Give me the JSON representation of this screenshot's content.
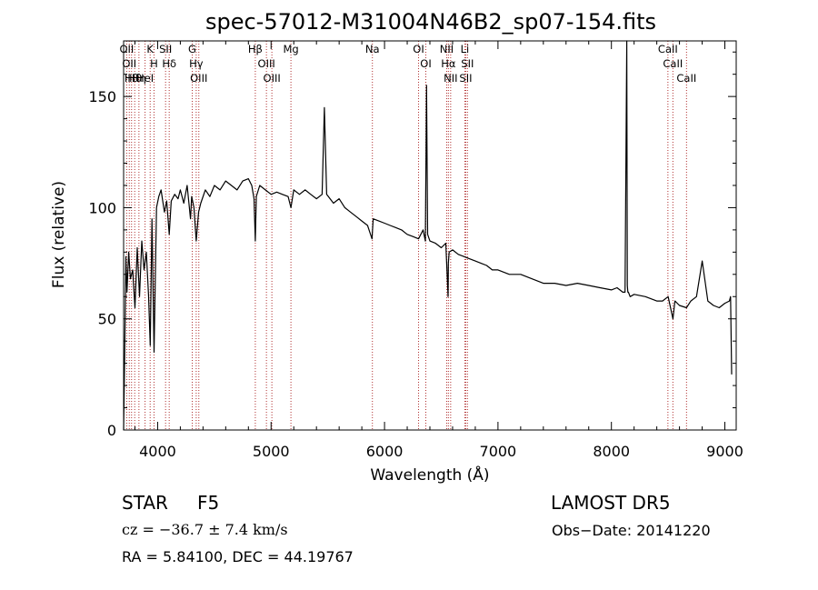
{
  "chart_data": {
    "type": "line",
    "title": "spec-57012-M31004N46B2_sp07-154.fits",
    "xlabel": "Wavelength (Å)",
    "ylabel": "Flux (relative)",
    "xlim": [
      3700,
      9100
    ],
    "ylim": [
      0,
      175
    ],
    "xticks": [
      4000,
      5000,
      6000,
      7000,
      8000,
      9000
    ],
    "yticks": [
      0,
      50,
      100,
      150
    ],
    "series": [
      {
        "x": [
          3700,
          3710,
          3720,
          3730,
          3745,
          3760,
          3780,
          3800,
          3820,
          3840,
          3860,
          3880,
          3900,
          3920,
          3935,
          3950,
          3968,
          3990,
          4010,
          4030,
          4060,
          4080,
          4102,
          4120,
          4150,
          4180,
          4200,
          4230,
          4260,
          4290,
          4300,
          4320,
          4340,
          4361,
          4380,
          4420,
          4460,
          4500,
          4550,
          4600,
          4650,
          4700,
          4750,
          4800,
          4830,
          4850,
          4861,
          4870,
          4900,
          4950,
          5000,
          5050,
          5100,
          5150,
          5175,
          5200,
          5250,
          5300,
          5350,
          5400,
          5450,
          5470,
          5490,
          5550,
          5600,
          5650,
          5700,
          5750,
          5800,
          5850,
          5890,
          5900,
          5950,
          6000,
          6050,
          6100,
          6150,
          6200,
          6250,
          6300,
          6340,
          6360,
          6370,
          6380,
          6400,
          6450,
          6500,
          6540,
          6560,
          6563,
          6570,
          6600,
          6650,
          6700,
          6750,
          6800,
          6850,
          6900,
          6950,
          7000,
          7100,
          7200,
          7300,
          7400,
          7500,
          7600,
          7700,
          7800,
          7900,
          8000,
          8050,
          8100,
          8120,
          8135,
          8140,
          8145,
          8150,
          8165,
          8200,
          8300,
          8400,
          8450,
          8500,
          8542,
          8560,
          8600,
          8662,
          8700,
          8750,
          8800,
          8850,
          8900,
          8950,
          9000,
          9040,
          9050,
          9060
        ],
        "values": [
          0,
          35,
          78,
          62,
          80,
          68,
          72,
          55,
          82,
          60,
          85,
          72,
          80,
          60,
          38,
          95,
          35,
          100,
          105,
          108,
          98,
          103,
          88,
          103,
          106,
          104,
          108,
          102,
          110,
          95,
          105,
          100,
          85,
          98,
          102,
          108,
          105,
          110,
          108,
          112,
          110,
          108,
          112,
          113,
          110,
          104,
          85,
          105,
          110,
          108,
          106,
          107,
          106,
          105,
          100,
          108,
          106,
          108,
          106,
          104,
          106,
          145,
          106,
          102,
          104,
          100,
          98,
          96,
          94,
          92,
          86,
          95,
          94,
          93,
          92,
          91,
          90,
          88,
          87,
          86,
          90,
          85,
          155,
          88,
          85,
          84,
          82,
          84,
          60,
          75,
          80,
          81,
          79,
          78,
          77,
          76,
          75,
          74,
          72,
          72,
          70,
          70,
          68,
          66,
          66,
          65,
          66,
          65,
          64,
          63,
          64,
          62,
          62,
          175,
          65,
          62,
          62,
          60,
          61,
          60,
          58,
          58,
          60,
          50,
          58,
          56,
          55,
          58,
          60,
          76,
          58,
          56,
          55,
          57,
          58,
          60,
          25
        ]
      }
    ],
    "line_markers": [
      {
        "x": 3727,
        "label": "OII"
      },
      {
        "x": 3750,
        "label": "OII"
      },
      {
        "x": 3770,
        "label": "Hθ"
      },
      {
        "x": 3798,
        "label": "Hθ"
      },
      {
        "x": 3835,
        "label": "Hη"
      },
      {
        "x": 3889,
        "label": "HeI"
      },
      {
        "x": 3934,
        "label": "K"
      },
      {
        "x": 3968,
        "label": "H"
      },
      {
        "x": 4070,
        "label": "SII"
      },
      {
        "x": 4102,
        "label": "Hδ"
      },
      {
        "x": 4305,
        "label": "G"
      },
      {
        "x": 4340,
        "label": "Hγ"
      },
      {
        "x": 4363,
        "label": "OIII"
      },
      {
        "x": 4861,
        "label": "Hβ"
      },
      {
        "x": 4959,
        "label": "OIII"
      },
      {
        "x": 5007,
        "label": "OIII"
      },
      {
        "x": 5175,
        "label": "Mg"
      },
      {
        "x": 5893,
        "label": "Na"
      },
      {
        "x": 6300,
        "label": "OI"
      },
      {
        "x": 6364,
        "label": "OI"
      },
      {
        "x": 6548,
        "label": "NII"
      },
      {
        "x": 6563,
        "label": "Hα"
      },
      {
        "x": 6583,
        "label": "NII"
      },
      {
        "x": 6708,
        "label": "Li"
      },
      {
        "x": 6716,
        "label": "SII"
      },
      {
        "x": 6731,
        "label": "SII"
      },
      {
        "x": 8498,
        "label": "CaII"
      },
      {
        "x": 8542,
        "label": "CaII"
      },
      {
        "x": 8662,
        "label": "CaII"
      }
    ]
  },
  "info": {
    "class": "STAR",
    "subclass": "F5",
    "survey": "LAMOST  DR5",
    "cz": "cz = −36.7 ± 7.4 km/s",
    "obs_date": "Obs−Date: 20141220",
    "coords": "RA =   5.84100, DEC =  44.19767"
  }
}
